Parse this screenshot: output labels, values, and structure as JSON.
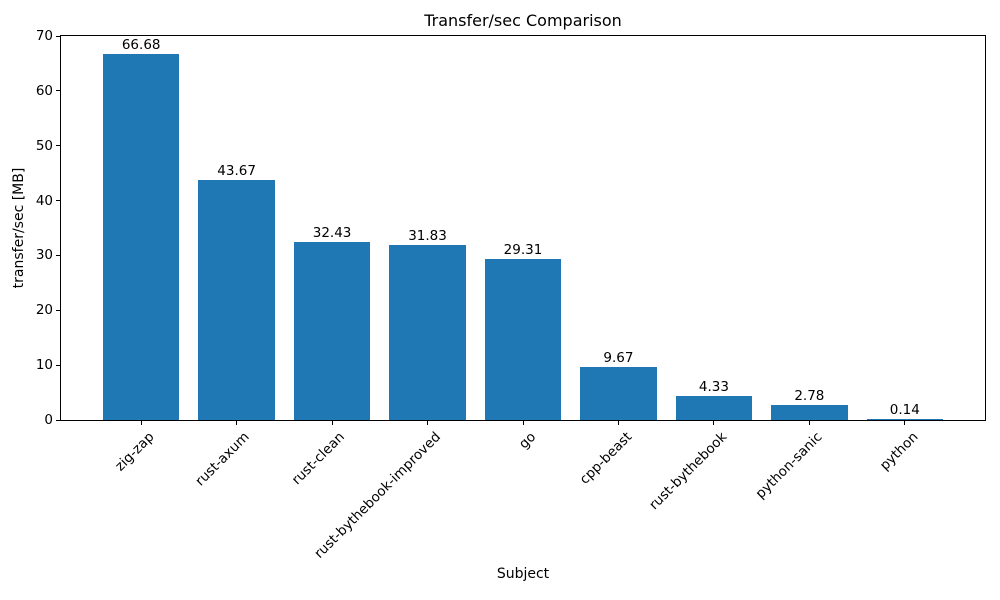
{
  "chart_data": {
    "type": "bar",
    "title": "Transfer/sec Comparison",
    "xlabel": "Subject",
    "ylabel": "transfer/sec [MB]",
    "categories": [
      "zig-zap",
      "rust-axum",
      "rust-clean",
      "rust-bythebook-improved",
      "go",
      "cpp-beast",
      "rust-bythebook",
      "python-sanic",
      "python"
    ],
    "values": [
      66.68,
      43.67,
      32.43,
      31.83,
      29.31,
      9.67,
      4.33,
      2.78,
      0.14
    ],
    "bar_labels": [
      "66.68",
      "43.67",
      "32.43",
      "31.83",
      "29.31",
      "9.67",
      "4.33",
      "2.78",
      "0.14"
    ],
    "ylim": [
      0,
      70
    ],
    "yticks": [
      0,
      10,
      20,
      30,
      40,
      50,
      60,
      70
    ],
    "xlim": [
      -0.84,
      8.84
    ],
    "bar_width": 0.8,
    "bar_color": "#1f77b4",
    "x_tick_rotation": 45,
    "grid": false,
    "legend": "none"
  }
}
